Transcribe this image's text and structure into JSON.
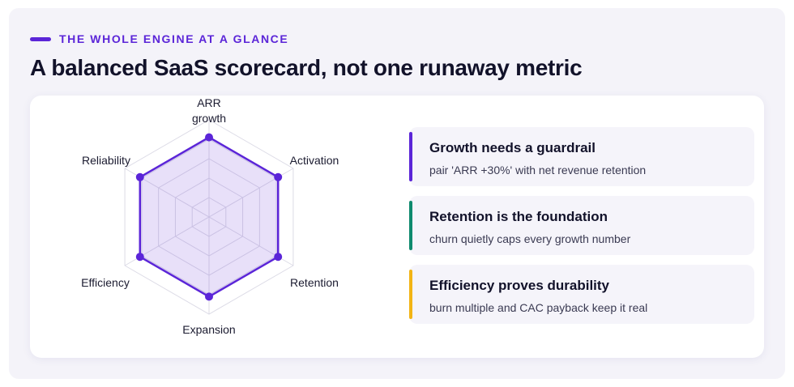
{
  "header": {
    "eyebrow": "THE WHOLE ENGINE AT A GLANCE",
    "title": "A balanced SaaS scorecard, not one runaway metric"
  },
  "colors": {
    "accent": "#5b25d8",
    "fill": "#ede8fb",
    "grid": "#dcdbe6",
    "retention": "#0f8a6e",
    "efficiency": "#f2b414"
  },
  "chart_data": {
    "type": "radar",
    "title": "",
    "axes": [
      [
        "ARR",
        "growth"
      ],
      [
        "Activation"
      ],
      [
        "Retention"
      ],
      [
        "Expansion"
      ],
      [
        "Efficiency"
      ],
      [
        "Reliability"
      ]
    ],
    "series": [
      {
        "values": [
          0.82,
          0.82,
          0.82,
          0.82,
          0.82,
          0.82
        ]
      }
    ],
    "range": [
      0,
      1
    ],
    "grid_rings": 5,
    "legend": "none"
  },
  "insights": [
    {
      "title": "Growth needs a guardrail",
      "text": "pair 'ARR +30%' with net revenue retention",
      "color": "#5b25d8"
    },
    {
      "title": "Retention is the foundation",
      "text": "churn quietly caps every growth number",
      "color": "#0f8a6e"
    },
    {
      "title": "Efficiency proves durability",
      "text": "burn multiple and CAC payback keep it real",
      "color": "#f2b414"
    }
  ]
}
